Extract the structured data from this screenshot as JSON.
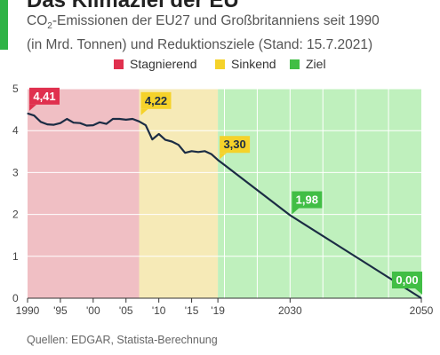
{
  "header": {
    "title": "Das Klimaziel der EU",
    "subtitle_line1_pre": "CO",
    "subtitle_line1_sub": "2",
    "subtitle_line1_post": "-Emissionen der EU27 und Großbritanniens seit 1990",
    "subtitle_line2": "(in Mrd. Tonnen) und Reduktionsziele (Stand: 15.7.2021)"
  },
  "legend": [
    {
      "label": "Stagnierend",
      "color": "#e0304e"
    },
    {
      "label": "Sinkend",
      "color": "#f5d22a"
    },
    {
      "label": "Ziel",
      "color": "#41be45"
    }
  ],
  "footer": {
    "source": "Quellen: EDGAR, Statista-Berechnung"
  },
  "colors": {
    "accent": "#2fb346",
    "line": "#1b2c44",
    "zone_red": "#f0bfc4",
    "zone_yellow": "#f6eab7",
    "zone_green": "#bff0bd",
    "grid": "#ffffff"
  },
  "chart_data": {
    "type": "line",
    "title": "",
    "xlabel": "",
    "ylabel": "",
    "xlim": [
      1990,
      2050
    ],
    "ylim": [
      0,
      5
    ],
    "y_ticks": [
      0,
      1,
      2,
      3,
      4,
      5
    ],
    "x_tick_values": [
      1990,
      1995,
      2000,
      2005,
      2010,
      2015,
      2019,
      2030,
      2050
    ],
    "x_tick_labels": [
      "1990",
      "'95",
      "'00",
      "'05",
      "'10",
      "'15",
      "'19",
      "2030",
      "2050"
    ],
    "grid": true,
    "legend_position": "top",
    "zones": [
      {
        "name": "Stagnierend",
        "from": 1990,
        "to": 2007
      },
      {
        "name": "Sinkend",
        "from": 2007,
        "to": 2019
      },
      {
        "name": "Ziel",
        "from": 2019,
        "to": 2050
      }
    ],
    "series": [
      {
        "x": [
          1990,
          1991,
          1992,
          1993,
          1994,
          1995,
          1996,
          1997,
          1998,
          1999,
          2000,
          2001,
          2002,
          2003,
          2004,
          2005,
          2006,
          2007,
          2008,
          2009,
          2010,
          2011,
          2012,
          2013,
          2014,
          2015,
          2016,
          2017,
          2018,
          2019,
          2030,
          2050
        ],
        "y": [
          4.41,
          4.36,
          4.21,
          4.15,
          4.14,
          4.18,
          4.28,
          4.19,
          4.18,
          4.12,
          4.13,
          4.2,
          4.16,
          4.28,
          4.28,
          4.26,
          4.28,
          4.22,
          4.13,
          3.79,
          3.92,
          3.78,
          3.74,
          3.66,
          3.47,
          3.51,
          3.49,
          3.51,
          3.44,
          3.3,
          1.98,
          0.0
        ]
      }
    ],
    "annotations": [
      {
        "x": 1990,
        "y": 4.41,
        "text": "4,41",
        "zone": "Stagnierend"
      },
      {
        "x": 2007,
        "y": 4.22,
        "text": "4,22",
        "zone": "Sinkend"
      },
      {
        "x": 2019,
        "y": 3.3,
        "text": "3,30",
        "zone": "Sinkend"
      },
      {
        "x": 2030,
        "y": 1.98,
        "text": "1,98",
        "zone": "Ziel"
      },
      {
        "x": 2050,
        "y": 0.0,
        "text": "0,00",
        "zone": "Ziel"
      }
    ]
  }
}
